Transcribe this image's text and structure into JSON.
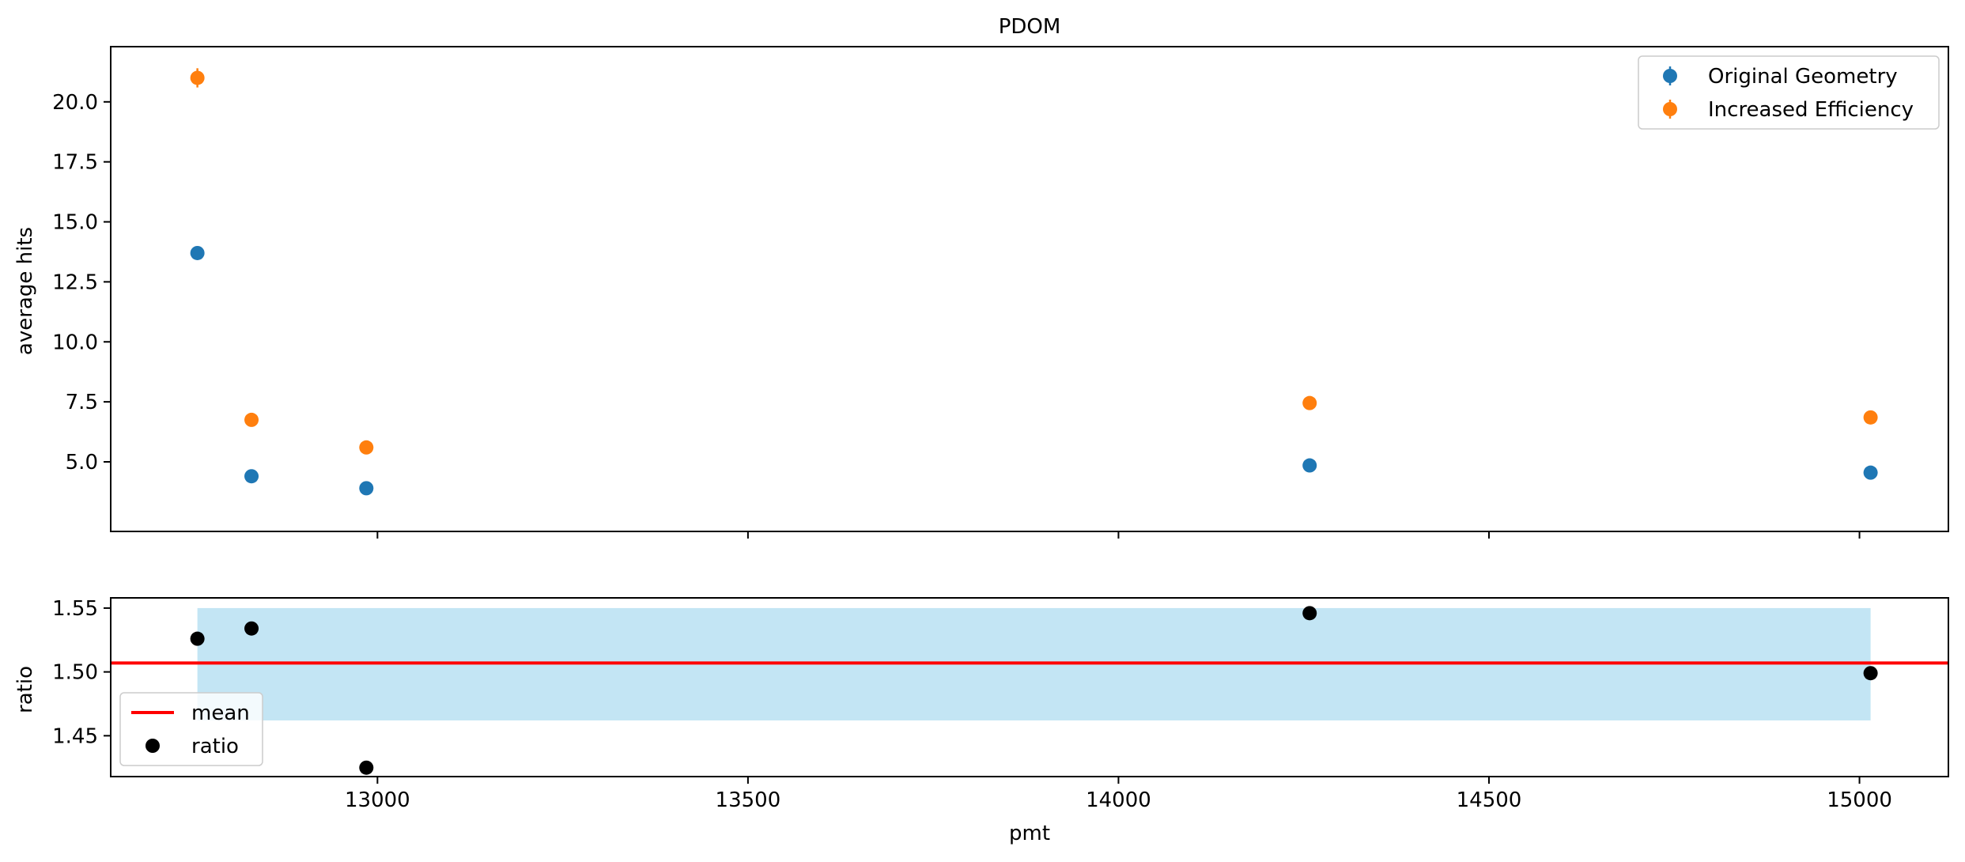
{
  "chart_data": [
    {
      "type": "scatter",
      "title": "PDOM",
      "xlabel": "",
      "ylabel": "average hits",
      "xlim": [
        12640,
        15120
      ],
      "ylim": [
        2.1,
        22.3
      ],
      "x_ticks": [
        13000,
        13500,
        14000,
        14500,
        15000
      ],
      "x_tick_labels_visible": false,
      "y_ticks": [
        5.0,
        7.5,
        10.0,
        12.5,
        15.0,
        17.5,
        20.0
      ],
      "y_tick_labels": [
        "5.0",
        "7.5",
        "10.0",
        "12.5",
        "15.0",
        "17.5",
        "20.0"
      ],
      "grid": false,
      "legend_position": "upper right",
      "series": [
        {
          "name": "Original Geometry",
          "color": "#1f77b4",
          "marker": "circle with error bar",
          "x": [
            12757,
            12830,
            12985,
            14258,
            15015
          ],
          "y": [
            13.7,
            4.4,
            3.9,
            4.85,
            4.55
          ],
          "yerr": [
            0.25,
            0.1,
            0.1,
            0.1,
            0.1
          ]
        },
        {
          "name": "Increased Efficiency",
          "color": "#ff7f0e",
          "marker": "circle with error bar",
          "x": [
            12757,
            12830,
            12985,
            14258,
            15015
          ],
          "y": [
            21.0,
            6.75,
            5.6,
            7.45,
            6.85
          ],
          "yerr": [
            0.4,
            0.1,
            0.1,
            0.1,
            0.1
          ]
        }
      ]
    },
    {
      "type": "scatter",
      "title": "",
      "xlabel": "pmt",
      "ylabel": "ratio",
      "xlim": [
        12640,
        15120
      ],
      "ylim": [
        1.418,
        1.558
      ],
      "x_ticks": [
        13000,
        13500,
        14000,
        14500,
        15000
      ],
      "x_tick_labels": [
        "13000",
        "13500",
        "14000",
        "14500",
        "15000"
      ],
      "y_ticks": [
        1.45,
        1.5,
        1.55
      ],
      "y_tick_labels": [
        "1.45",
        "1.50",
        "1.55"
      ],
      "grid": false,
      "legend_position": "lower left",
      "mean": {
        "name": "mean",
        "value": 1.507,
        "color": "#ff0000"
      },
      "band": {
        "x_range": [
          12757,
          15015
        ],
        "y_range": [
          1.462,
          1.55
        ],
        "color": "#c3e5f4"
      },
      "series": [
        {
          "name": "ratio",
          "color": "#000000",
          "x": [
            12757,
            12830,
            12985,
            14258,
            15015
          ],
          "y": [
            1.526,
            1.534,
            1.425,
            1.546,
            1.499
          ]
        }
      ]
    }
  ]
}
